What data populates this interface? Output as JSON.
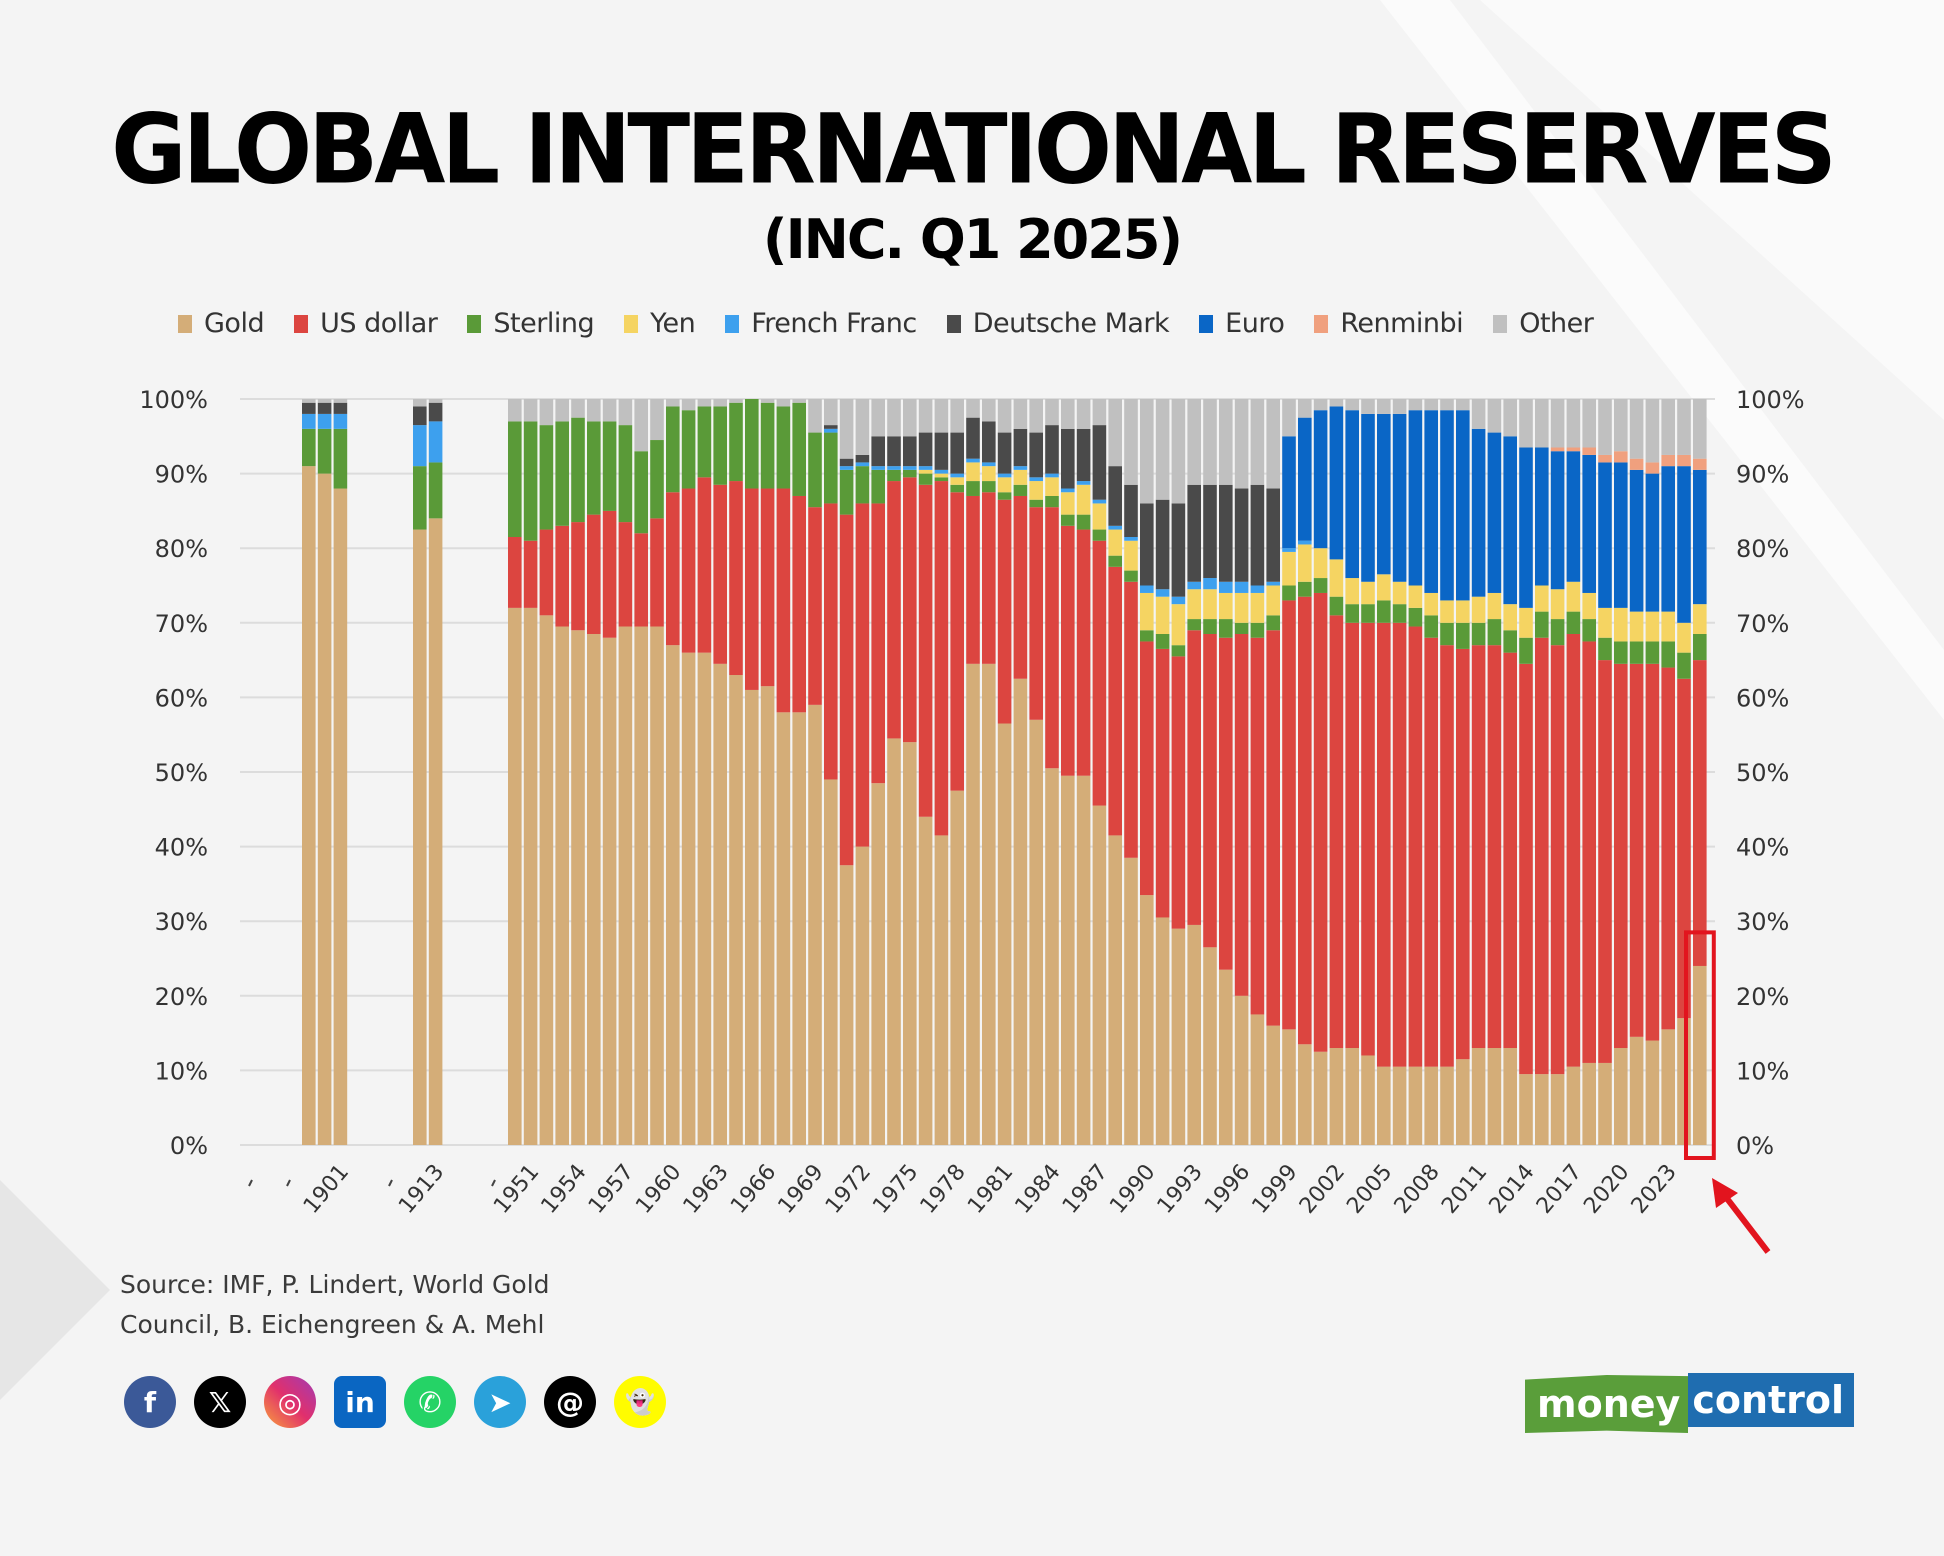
{
  "header": {
    "title": "GLOBAL INTERNATIONAL RESERVES",
    "subtitle": "(INC. Q1 2025)"
  },
  "source": {
    "line1": "Source: IMF, P. Lindert, World Gold",
    "line2": "Council, B. Eichengreen & A. Mehl"
  },
  "social_icons": [
    {
      "name": "facebook-icon",
      "glyph": "f",
      "color": "#3b5998"
    },
    {
      "name": "x-twitter-icon",
      "glyph": "𝕏",
      "color": "#000000"
    },
    {
      "name": "instagram-icon",
      "glyph": "◎",
      "color": "#d6249f"
    },
    {
      "name": "linkedin-icon",
      "glyph": "in",
      "color": "#0a66c2"
    },
    {
      "name": "whatsapp-icon",
      "glyph": "✆",
      "color": "#25d366"
    },
    {
      "name": "telegram-icon",
      "glyph": "➤",
      "color": "#2aa1da"
    },
    {
      "name": "threads-icon",
      "glyph": "@",
      "color": "#000000"
    },
    {
      "name": "snapchat-icon",
      "glyph": "👻",
      "color": "#fffc00"
    }
  ],
  "logo": {
    "part1": "money",
    "part2": "control"
  },
  "highlight": {
    "target_label": "2025 Q1",
    "color": "#e2141e"
  },
  "chart_data": {
    "type": "bar",
    "stacked": true,
    "title": "GLOBAL INTERNATIONAL RESERVES",
    "subtitle": "(INC. Q1 2025)",
    "xlabel": "",
    "ylabel": "",
    "ylim": [
      0,
      100
    ],
    "yticks": [
      "0%",
      "10%",
      "20%",
      "30%",
      "40%",
      "50%",
      "60%",
      "70%",
      "80%",
      "90%",
      "100%"
    ],
    "y_axis_both_sides": true,
    "grid": true,
    "legend_position": "top",
    "series": [
      {
        "name": "Gold",
        "color": "#d4ad78"
      },
      {
        "name": "US dollar",
        "color": "#dc4540"
      },
      {
        "name": "Sterling",
        "color": "#5a9a38"
      },
      {
        "name": "Yen",
        "color": "#f5d462"
      },
      {
        "name": "French Franc",
        "color": "#3da0ee"
      },
      {
        "name": "Deutsche Mark",
        "color": "#4a4a4a"
      },
      {
        "name": "Euro",
        "color": "#0a66c6"
      },
      {
        "name": "Renminbi",
        "color": "#f0a07e"
      },
      {
        "name": "Other",
        "color": "#c0c0c0"
      }
    ],
    "tick_labels": [
      "1901",
      "1913",
      "1951",
      "1954",
      "1957",
      "1960",
      "1963",
      "1966",
      "1969",
      "1972",
      "1975",
      "1978",
      "1981",
      "1984",
      "1987",
      "1990",
      "1993",
      "1996",
      "1999",
      "2002",
      "2005",
      "2008",
      "2011",
      "2014",
      "2017",
      "2020",
      "2023"
    ],
    "groups": [
      {
        "categories": [
          "1899",
          "1900",
          "1901"
        ],
        "values": [
          [
            91,
            0,
            5,
            0,
            2,
            1.5,
            0,
            0,
            0.5
          ],
          [
            90,
            0,
            6,
            0,
            2,
            1.5,
            0,
            0,
            0.5
          ],
          [
            88,
            0,
            8,
            0,
            2,
            1.5,
            0,
            0,
            0.5
          ]
        ]
      },
      {
        "categories": [
          "1912",
          "1913"
        ],
        "values": [
          [
            82.5,
            0,
            8.5,
            0,
            5.5,
            2.5,
            0,
            0,
            1
          ],
          [
            84,
            0,
            7.5,
            0,
            5.5,
            2.5,
            0,
            0,
            0.5
          ]
        ]
      },
      {
        "categories": [
          "1950",
          "1951",
          "1952",
          "1953",
          "1954",
          "1955",
          "1956",
          "1957",
          "1958",
          "1959",
          "1960",
          "1961",
          "1962",
          "1963",
          "1964",
          "1965",
          "1966",
          "1967",
          "1968",
          "1969",
          "1970",
          "1971",
          "1972",
          "1973",
          "1974",
          "1975",
          "1976",
          "1977",
          "1978",
          "1979",
          "1980",
          "1981",
          "1982",
          "1983",
          "1984",
          "1985",
          "1986",
          "1987",
          "1988",
          "1989",
          "1990",
          "1991",
          "1992",
          "1993",
          "1994",
          "1995",
          "1996",
          "1997",
          "1998",
          "1999",
          "2000",
          "2001",
          "2002",
          "2003",
          "2004",
          "2005",
          "2006",
          "2007",
          "2008",
          "2009",
          "2010",
          "2011",
          "2012",
          "2013",
          "2014",
          "2015",
          "2016",
          "2017",
          "2018",
          "2019",
          "2020",
          "2021",
          "2022",
          "2023",
          "2024",
          "2025 Q1"
        ],
        "values": [
          [
            72,
            9.5,
            15.5,
            0,
            0,
            0,
            0,
            0,
            3
          ],
          [
            72,
            9,
            16,
            0,
            0,
            0,
            0,
            0,
            3
          ],
          [
            71,
            11.5,
            14,
            0,
            0,
            0,
            0,
            0,
            3.5
          ],
          [
            69.5,
            13.5,
            14,
            0,
            0,
            0,
            0,
            0,
            3
          ],
          [
            69,
            14.5,
            14,
            0,
            0,
            0,
            0,
            0,
            2.5
          ],
          [
            68.5,
            16,
            12.5,
            0,
            0,
            0,
            0,
            0,
            3
          ],
          [
            68,
            17,
            12,
            0,
            0,
            0,
            0,
            0,
            3
          ],
          [
            69.5,
            14,
            13,
            0,
            0,
            0,
            0,
            0,
            3.5
          ],
          [
            69.5,
            12.5,
            11,
            0,
            0,
            0,
            0,
            0,
            7
          ],
          [
            69.5,
            14.5,
            10.5,
            0,
            0,
            0,
            0,
            0,
            5.5
          ],
          [
            67,
            20.5,
            11.5,
            0,
            0,
            0,
            0,
            0,
            1
          ],
          [
            66,
            22,
            10.5,
            0,
            0,
            0,
            0,
            0,
            1.5
          ],
          [
            66,
            23.5,
            9.5,
            0,
            0,
            0,
            0,
            0,
            1
          ],
          [
            64.5,
            24,
            10.5,
            0,
            0,
            0,
            0,
            0,
            1
          ],
          [
            63,
            26,
            10.5,
            0,
            0,
            0,
            0,
            0,
            0.5
          ],
          [
            61,
            27,
            12,
            0,
            0,
            0,
            0,
            0,
            0
          ],
          [
            61.5,
            26.5,
            11.5,
            0,
            0,
            0,
            0,
            0,
            0.5
          ],
          [
            58,
            30,
            11,
            0,
            0,
            0,
            0,
            0,
            1
          ],
          [
            58,
            29,
            12.5,
            0,
            0,
            0,
            0,
            0,
            0.5
          ],
          [
            59,
            26.5,
            10,
            0,
            0,
            0,
            0,
            0,
            4.5
          ],
          [
            49,
            37,
            9.5,
            0,
            0.5,
            0.5,
            0,
            0,
            3.5
          ],
          [
            37.5,
            47,
            6,
            0,
            0.5,
            1,
            0,
            0,
            8
          ],
          [
            40,
            46,
            5,
            0,
            0.5,
            1,
            0,
            0,
            7.5
          ],
          [
            48.5,
            37.5,
            4.5,
            0,
            0.5,
            4,
            0,
            0,
            5
          ],
          [
            54.5,
            34.5,
            1.5,
            0,
            0.5,
            4,
            0,
            0,
            5
          ],
          [
            54,
            35.5,
            1,
            0,
            0.5,
            4,
            0,
            0,
            5
          ],
          [
            44,
            44.5,
            1.5,
            0.5,
            0.5,
            4.5,
            0,
            0,
            4.5
          ],
          [
            41.5,
            47.5,
            0.5,
            0.5,
            0.5,
            5,
            0,
            0,
            4.5
          ],
          [
            47.5,
            40,
            1,
            1,
            0.5,
            5.5,
            0,
            0,
            4.5
          ],
          [
            64.5,
            22.5,
            2,
            2.5,
            0.5,
            5.5,
            0,
            0,
            2.5
          ],
          [
            64.5,
            23,
            1.5,
            2,
            0.5,
            5.5,
            0,
            0,
            3
          ],
          [
            56.5,
            30,
            1,
            2,
            0.5,
            5.5,
            0,
            0,
            4.5
          ],
          [
            62.5,
            24.5,
            1.5,
            2,
            0.5,
            5,
            0,
            0,
            4
          ],
          [
            57,
            28.5,
            1,
            2.5,
            0.5,
            6,
            0,
            0,
            4.5
          ],
          [
            50.5,
            35,
            1.5,
            2.5,
            0.5,
            6.5,
            0,
            0,
            3.5
          ],
          [
            49.5,
            33.5,
            1.5,
            3,
            0.5,
            8,
            0,
            0,
            4
          ],
          [
            49.5,
            33,
            2,
            4,
            0.5,
            7,
            0,
            0,
            4
          ],
          [
            45.5,
            35.5,
            1.5,
            3.5,
            0.5,
            10,
            0,
            0,
            3.5
          ],
          [
            41.5,
            36,
            1.5,
            3.5,
            0.5,
            8,
            0,
            0,
            9
          ],
          [
            38.5,
            37,
            1.5,
            4,
            0.5,
            7,
            0,
            0,
            11.5
          ],
          [
            33.5,
            34,
            1.5,
            5,
            1,
            11,
            0,
            0,
            14
          ],
          [
            30.5,
            36,
            2,
            5,
            1,
            12,
            0,
            0,
            13.5
          ],
          [
            29,
            36.5,
            1.5,
            5.5,
            1,
            12.5,
            0,
            0,
            14
          ],
          [
            29.5,
            39.5,
            1.5,
            4,
            1,
            13,
            0,
            0,
            11.5
          ],
          [
            26.5,
            42,
            2,
            4,
            1.5,
            12.5,
            0,
            0,
            11.5
          ],
          [
            23.5,
            44.5,
            2.5,
            3.5,
            1.5,
            13,
            0,
            0,
            11.5
          ],
          [
            20,
            48.5,
            1.5,
            4,
            1.5,
            12.5,
            0,
            0,
            12
          ],
          [
            17.5,
            50.5,
            2,
            4,
            1,
            13.5,
            0,
            0,
            11.5
          ],
          [
            16,
            53,
            2,
            4,
            0.5,
            12.5,
            0,
            0,
            12
          ],
          [
            15.5,
            57.5,
            2,
            4.5,
            0.5,
            0,
            15,
            0,
            5
          ],
          [
            13.5,
            60,
            2,
            5,
            0.5,
            0,
            16.5,
            0,
            2.5
          ],
          [
            12.5,
            61.5,
            2,
            4,
            0,
            0,
            18.5,
            0,
            1.5
          ],
          [
            13,
            58,
            2.5,
            5,
            0,
            0,
            20.5,
            0,
            1
          ],
          [
            13,
            57,
            2.5,
            3.5,
            0,
            0,
            22.5,
            0,
            1.5
          ],
          [
            12,
            58,
            2.5,
            3,
            0,
            0,
            22.5,
            0,
            2
          ],
          [
            10.5,
            59.5,
            3,
            3.5,
            0,
            0,
            21.5,
            0,
            2
          ],
          [
            10.5,
            59.5,
            2.5,
            3,
            0,
            0,
            22.5,
            0,
            2
          ],
          [
            10.5,
            59,
            2.5,
            3,
            0,
            0,
            23.5,
            0,
            1.5
          ],
          [
            10.5,
            57.5,
            3,
            3,
            0,
            0,
            24.5,
            0,
            1.5
          ],
          [
            10.5,
            56.5,
            3,
            3,
            0,
            0,
            25.5,
            0,
            1.5
          ],
          [
            11.5,
            55,
            3.5,
            3,
            0,
            0,
            25.5,
            0,
            1.5
          ],
          [
            13,
            54,
            3,
            3.5,
            0,
            0,
            22.5,
            0,
            4
          ],
          [
            13,
            54,
            3.5,
            3.5,
            0,
            0,
            21.5,
            0,
            4.5
          ],
          [
            13,
            53,
            3,
            3.5,
            0,
            0,
            22.5,
            0,
            5
          ],
          [
            9.5,
            55,
            3.5,
            4,
            0,
            0,
            21.5,
            0,
            6.5
          ],
          [
            9.5,
            58.5,
            3.5,
            3.5,
            0,
            0,
            18.5,
            0,
            6.5
          ],
          [
            9.5,
            57.5,
            3.5,
            4,
            0,
            0,
            18.5,
            0.5,
            6.5
          ],
          [
            10.5,
            58,
            3,
            4,
            0,
            0,
            17.5,
            0.5,
            6.5
          ],
          [
            11,
            56.5,
            3,
            3.5,
            0,
            0,
            18.5,
            1,
            6.5
          ],
          [
            11,
            54,
            3,
            4,
            0,
            0,
            19.5,
            1,
            7.5
          ],
          [
            13,
            51.5,
            3,
            4.5,
            0,
            0,
            19.5,
            1.5,
            7
          ],
          [
            14.5,
            50,
            3,
            4,
            0,
            0,
            19,
            1.5,
            8
          ],
          [
            14,
            50.5,
            3,
            4,
            0,
            0,
            18.5,
            1.5,
            8.5
          ],
          [
            15.5,
            48.5,
            3.5,
            4,
            0,
            0,
            19.5,
            1.5,
            7.5
          ],
          [
            17,
            45.5,
            3.5,
            4,
            0,
            0,
            21,
            1.5,
            7.5
          ],
          [
            24,
            41,
            3.5,
            4,
            0,
            0,
            18,
            1.5,
            8
          ]
        ]
      }
    ]
  }
}
